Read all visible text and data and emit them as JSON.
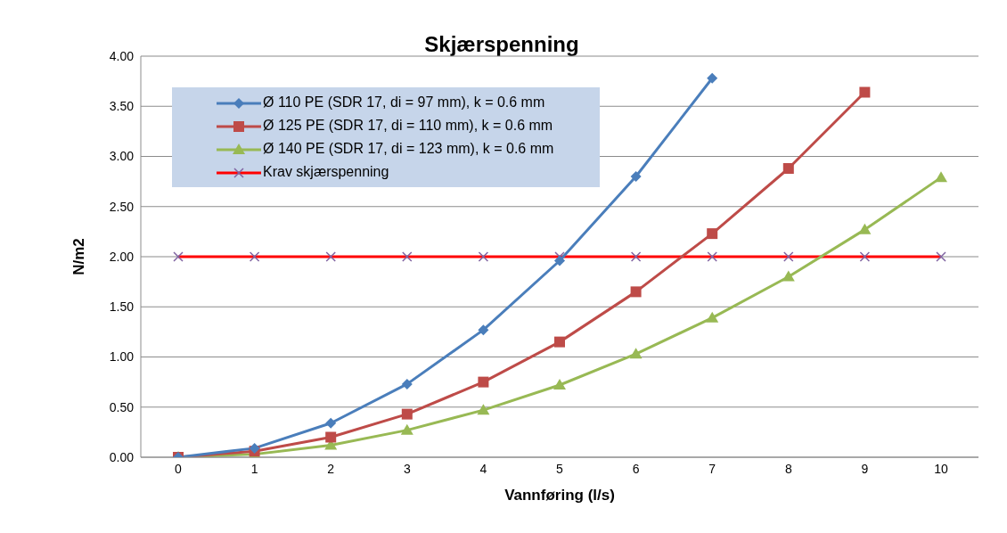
{
  "chart_data": {
    "type": "line",
    "title": "Skjærspenning",
    "xlabel": "Vannføring (l/s)",
    "ylabel": "N/m2",
    "categories": [
      "0",
      "1",
      "2",
      "3",
      "4",
      "5",
      "6",
      "7",
      "8",
      "9",
      "10"
    ],
    "series": [
      {
        "name": "Ø 110 PE (SDR 17, di = 97 mm), k = 0.6 mm",
        "color": "#4a7ebb",
        "marker": "diamond",
        "values": [
          0,
          0.09,
          0.34,
          0.73,
          1.27,
          1.96,
          2.8,
          3.78,
          null,
          null,
          null
        ]
      },
      {
        "name": "Ø 125 PE (SDR 17, di = 110 mm), k = 0.6 mm",
        "color": "#be4b48",
        "marker": "square",
        "values": [
          0,
          0.06,
          0.2,
          0.43,
          0.75,
          1.15,
          1.65,
          2.23,
          2.88,
          3.64,
          null
        ]
      },
      {
        "name": "Ø 140 PE (SDR 17, di = 123 mm), k = 0.6 mm",
        "color": "#98b954",
        "marker": "triangle",
        "values": [
          0,
          0.03,
          0.12,
          0.27,
          0.47,
          0.72,
          1.03,
          1.39,
          1.8,
          2.27,
          2.79
        ]
      },
      {
        "name": "Krav skjærspenning",
        "color": "#ff0000",
        "marker": "cross",
        "values": [
          2,
          2,
          2,
          2,
          2,
          2,
          2,
          2,
          2,
          2,
          2
        ]
      }
    ],
    "ylim": [
      0,
      4
    ],
    "yticks": [
      {
        "value": 0,
        "label": "0.00"
      },
      {
        "value": 0.5,
        "label": "0.50"
      },
      {
        "value": 1,
        "label": "1.00"
      },
      {
        "value": 1.5,
        "label": "1.50"
      },
      {
        "value": 2,
        "label": "2.00"
      },
      {
        "value": 2.5,
        "label": "2.50"
      },
      {
        "value": 3,
        "label": "3.00"
      },
      {
        "value": 3.5,
        "label": "3.50"
      },
      {
        "value": 4,
        "label": "4.00"
      }
    ],
    "grid": "y",
    "legend": "top left"
  }
}
